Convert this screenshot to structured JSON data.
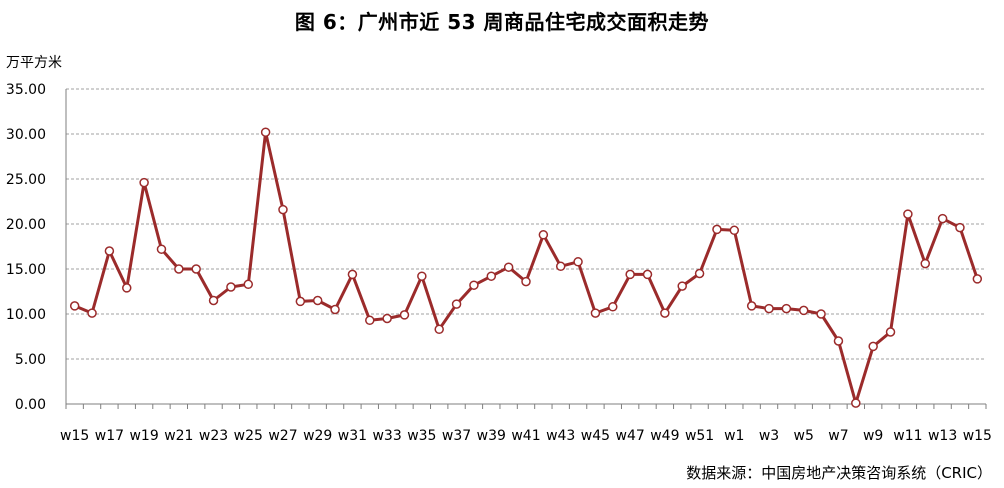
{
  "header": {
    "title": "图 6：广州市近 53 周商品住宅成交面积走势",
    "source": "数据来源：中国房地产决策咨询系统（CRIC）"
  },
  "chart_data": {
    "type": "line",
    "title": "图 6：广州市近 53 周商品住宅成交面积走势",
    "ylabel": "万平方米",
    "xlabel": "",
    "ylim": [
      0,
      35
    ],
    "yticks": [
      "0.00",
      "5.00",
      "10.00",
      "15.00",
      "20.00",
      "25.00",
      "30.00",
      "35.00"
    ],
    "grid": true,
    "x_tick_labels": [
      "w15",
      "w17",
      "w19",
      "w21",
      "w23",
      "w25",
      "w27",
      "w29",
      "w31",
      "w33",
      "w35",
      "w37",
      "w39",
      "w41",
      "w43",
      "w45",
      "w47",
      "w49",
      "w51",
      "w1",
      "w3",
      "w5",
      "w7",
      "w9",
      "w11",
      "w13",
      "w15"
    ],
    "colors": {
      "line": "#9B2B2B",
      "marker_fill": "#ffffff",
      "grid": "#a0a0a0"
    },
    "series": [
      {
        "values": [
          10.9,
          10.1,
          17.0,
          12.9,
          24.6,
          17.2,
          15.0,
          15.0,
          11.5,
          13.0,
          13.3,
          30.2,
          21.6,
          11.4,
          11.5,
          10.5,
          14.4,
          9.3,
          9.5,
          9.9,
          14.2,
          8.3,
          11.1,
          13.2,
          14.2,
          15.2,
          13.6,
          18.8,
          15.3,
          15.8,
          10.1,
          10.8,
          14.4,
          14.4,
          10.1,
          13.1,
          14.5,
          19.4,
          19.3,
          10.9,
          10.6,
          10.6,
          10.4,
          10.0,
          7.0,
          0.1,
          6.4,
          8.0,
          21.1,
          15.6,
          20.6,
          19.6,
          13.9
        ]
      }
    ]
  }
}
